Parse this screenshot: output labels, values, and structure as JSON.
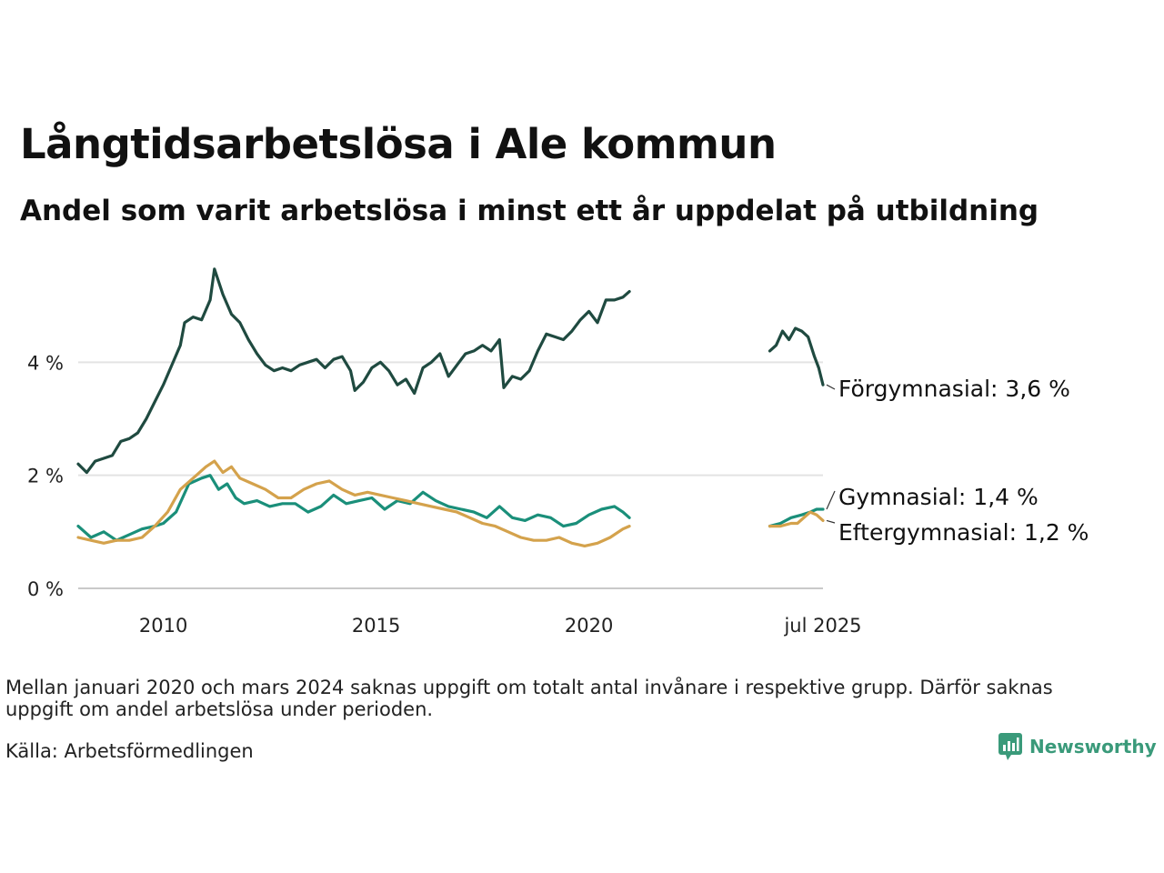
{
  "title": "Långtidsarbetslösa i Ale kommun",
  "subtitle": "Andel som varit arbetslösa i minst ett år uppdelat på utbildning",
  "note": "Mellan januari 2020 och mars 2024 saknas uppgift om totalt antal invånare i respektive grupp. Därför saknas uppgift om andel arbetslösa under perioden.",
  "source": "Källa: Arbetsförmedlingen",
  "logo": "Newsworthy",
  "chart_data": {
    "type": "line",
    "x_unit": "year",
    "xlim": [
      2008.0,
      2025.5
    ],
    "ylim": [
      0,
      6
    ],
    "y_ticks": [
      0,
      2,
      4
    ],
    "y_tick_labels": [
      "0 %",
      "2 %",
      "4 %"
    ],
    "x_ticks": [
      2010,
      2015,
      2020,
      2025.5
    ],
    "x_tick_labels": [
      "2010",
      "2015",
      "2020",
      "jul 2025"
    ],
    "grid": true,
    "gap": [
      "2020-01",
      "2024-03"
    ],
    "series": [
      {
        "name": "Förgymnasial",
        "end_label": "Förgymnasial: 3,6 %",
        "color": "#1f4a40",
        "segments": [
          [
            [
              2008.0,
              2.2
            ],
            [
              2008.2,
              2.05
            ],
            [
              2008.4,
              2.25
            ],
            [
              2008.6,
              2.3
            ],
            [
              2008.8,
              2.35
            ],
            [
              2009.0,
              2.6
            ],
            [
              2009.2,
              2.65
            ],
            [
              2009.4,
              2.75
            ],
            [
              2009.6,
              3.0
            ],
            [
              2009.8,
              3.3
            ],
            [
              2010.0,
              3.6
            ],
            [
              2010.2,
              3.95
            ],
            [
              2010.4,
              4.3
            ],
            [
              2010.5,
              4.7
            ],
            [
              2010.7,
              4.8
            ],
            [
              2010.9,
              4.75
            ],
            [
              2011.1,
              5.1
            ],
            [
              2011.2,
              5.65
            ],
            [
              2011.4,
              5.2
            ],
            [
              2011.6,
              4.85
            ],
            [
              2011.8,
              4.7
            ],
            [
              2012.0,
              4.4
            ],
            [
              2012.2,
              4.15
            ],
            [
              2012.4,
              3.95
            ],
            [
              2012.6,
              3.85
            ],
            [
              2012.8,
              3.9
            ],
            [
              2013.0,
              3.85
            ],
            [
              2013.2,
              3.95
            ],
            [
              2013.4,
              4.0
            ],
            [
              2013.6,
              4.05
            ],
            [
              2013.8,
              3.9
            ],
            [
              2014.0,
              4.05
            ],
            [
              2014.2,
              4.1
            ],
            [
              2014.4,
              3.85
            ],
            [
              2014.5,
              3.5
            ],
            [
              2014.7,
              3.65
            ],
            [
              2014.9,
              3.9
            ],
            [
              2015.1,
              4.0
            ],
            [
              2015.3,
              3.85
            ],
            [
              2015.5,
              3.6
            ],
            [
              2015.7,
              3.7
            ],
            [
              2015.9,
              3.45
            ],
            [
              2016.1,
              3.9
            ],
            [
              2016.3,
              4.0
            ],
            [
              2016.5,
              4.15
            ],
            [
              2016.7,
              3.75
            ],
            [
              2016.9,
              3.95
            ],
            [
              2017.1,
              4.15
            ],
            [
              2017.3,
              4.2
            ],
            [
              2017.5,
              4.3
            ],
            [
              2017.7,
              4.2
            ],
            [
              2017.9,
              4.4
            ],
            [
              2018.0,
              3.55
            ],
            [
              2018.2,
              3.75
            ],
            [
              2018.4,
              3.7
            ],
            [
              2018.6,
              3.85
            ],
            [
              2018.8,
              4.2
            ],
            [
              2019.0,
              4.5
            ],
            [
              2019.2,
              4.45
            ],
            [
              2019.4,
              4.4
            ],
            [
              2019.6,
              4.55
            ],
            [
              2019.8,
              4.75
            ],
            [
              2020.0,
              4.9
            ],
            [
              2020.2,
              4.7
            ],
            [
              2020.4,
              5.1
            ],
            [
              2020.6,
              5.1
            ],
            [
              2020.8,
              5.15
            ],
            [
              2020.95,
              5.25
            ]
          ],
          [
            [
              2024.25,
              4.2
            ],
            [
              2024.4,
              4.3
            ],
            [
              2024.55,
              4.55
            ],
            [
              2024.7,
              4.4
            ],
            [
              2024.85,
              4.6
            ],
            [
              2025.0,
              4.55
            ],
            [
              2025.15,
              4.45
            ],
            [
              2025.3,
              4.1
            ],
            [
              2025.4,
              3.9
            ],
            [
              2025.5,
              3.6
            ]
          ]
        ]
      },
      {
        "name": "Gymnasial",
        "end_label": "Gymnasial: 1,4 %",
        "color": "#1a8f7a",
        "segments": [
          [
            [
              2008.0,
              1.1
            ],
            [
              2008.3,
              0.9
            ],
            [
              2008.6,
              1.0
            ],
            [
              2008.9,
              0.85
            ],
            [
              2009.2,
              0.95
            ],
            [
              2009.5,
              1.05
            ],
            [
              2009.8,
              1.1
            ],
            [
              2010.0,
              1.15
            ],
            [
              2010.3,
              1.35
            ],
            [
              2010.6,
              1.85
            ],
            [
              2010.9,
              1.95
            ],
            [
              2011.1,
              2.0
            ],
            [
              2011.3,
              1.75
            ],
            [
              2011.5,
              1.85
            ],
            [
              2011.7,
              1.6
            ],
            [
              2011.9,
              1.5
            ],
            [
              2012.2,
              1.55
            ],
            [
              2012.5,
              1.45
            ],
            [
              2012.8,
              1.5
            ],
            [
              2013.1,
              1.5
            ],
            [
              2013.4,
              1.35
            ],
            [
              2013.7,
              1.45
            ],
            [
              2014.0,
              1.65
            ],
            [
              2014.3,
              1.5
            ],
            [
              2014.6,
              1.55
            ],
            [
              2014.9,
              1.6
            ],
            [
              2015.2,
              1.4
            ],
            [
              2015.5,
              1.55
            ],
            [
              2015.8,
              1.5
            ],
            [
              2016.1,
              1.7
            ],
            [
              2016.4,
              1.55
            ],
            [
              2016.7,
              1.45
            ],
            [
              2017.0,
              1.4
            ],
            [
              2017.3,
              1.35
            ],
            [
              2017.6,
              1.25
            ],
            [
              2017.9,
              1.45
            ],
            [
              2018.2,
              1.25
            ],
            [
              2018.5,
              1.2
            ],
            [
              2018.8,
              1.3
            ],
            [
              2019.1,
              1.25
            ],
            [
              2019.4,
              1.1
            ],
            [
              2019.7,
              1.15
            ],
            [
              2020.0,
              1.3
            ],
            [
              2020.3,
              1.4
            ],
            [
              2020.6,
              1.45
            ],
            [
              2020.8,
              1.35
            ],
            [
              2020.95,
              1.25
            ]
          ],
          [
            [
              2024.25,
              1.1
            ],
            [
              2024.5,
              1.15
            ],
            [
              2024.75,
              1.25
            ],
            [
              2025.0,
              1.3
            ],
            [
              2025.2,
              1.35
            ],
            [
              2025.35,
              1.4
            ],
            [
              2025.5,
              1.4
            ]
          ]
        ]
      },
      {
        "name": "Eftergymnasial",
        "end_label": "Eftergymnasial: 1,2 %",
        "color": "#d4a24c",
        "segments": [
          [
            [
              2008.0,
              0.9
            ],
            [
              2008.3,
              0.85
            ],
            [
              2008.6,
              0.8
            ],
            [
              2008.9,
              0.85
            ],
            [
              2009.2,
              0.85
            ],
            [
              2009.5,
              0.9
            ],
            [
              2009.8,
              1.1
            ],
            [
              2010.1,
              1.35
            ],
            [
              2010.4,
              1.75
            ],
            [
              2010.7,
              1.95
            ],
            [
              2011.0,
              2.15
            ],
            [
              2011.2,
              2.25
            ],
            [
              2011.4,
              2.05
            ],
            [
              2011.6,
              2.15
            ],
            [
              2011.8,
              1.95
            ],
            [
              2012.1,
              1.85
            ],
            [
              2012.4,
              1.75
            ],
            [
              2012.7,
              1.6
            ],
            [
              2013.0,
              1.6
            ],
            [
              2013.3,
              1.75
            ],
            [
              2013.6,
              1.85
            ],
            [
              2013.9,
              1.9
            ],
            [
              2014.2,
              1.75
            ],
            [
              2014.5,
              1.65
            ],
            [
              2014.8,
              1.7
            ],
            [
              2015.1,
              1.65
            ],
            [
              2015.4,
              1.6
            ],
            [
              2015.7,
              1.55
            ],
            [
              2016.0,
              1.5
            ],
            [
              2016.3,
              1.45
            ],
            [
              2016.6,
              1.4
            ],
            [
              2016.9,
              1.35
            ],
            [
              2017.2,
              1.25
            ],
            [
              2017.5,
              1.15
            ],
            [
              2017.8,
              1.1
            ],
            [
              2018.1,
              1.0
            ],
            [
              2018.4,
              0.9
            ],
            [
              2018.7,
              0.85
            ],
            [
              2019.0,
              0.85
            ],
            [
              2019.3,
              0.9
            ],
            [
              2019.6,
              0.8
            ],
            [
              2019.9,
              0.75
            ],
            [
              2020.2,
              0.8
            ],
            [
              2020.5,
              0.9
            ],
            [
              2020.8,
              1.05
            ],
            [
              2020.95,
              1.1
            ]
          ],
          [
            [
              2024.25,
              1.1
            ],
            [
              2024.5,
              1.1
            ],
            [
              2024.75,
              1.15
            ],
            [
              2024.9,
              1.15
            ],
            [
              2025.05,
              1.25
            ],
            [
              2025.2,
              1.35
            ],
            [
              2025.35,
              1.3
            ],
            [
              2025.5,
              1.2
            ]
          ]
        ]
      }
    ]
  }
}
